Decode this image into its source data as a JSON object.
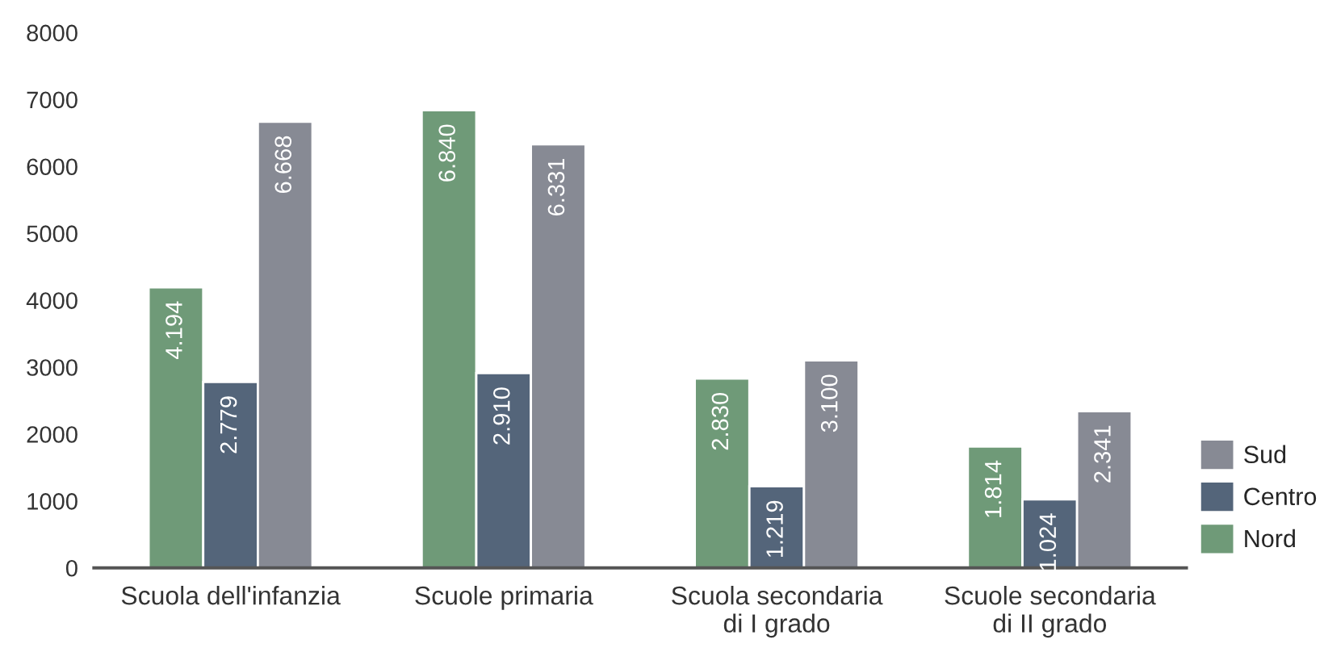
{
  "chart_data": {
    "type": "bar",
    "categories": [
      "Scuola dell'infanzia",
      "Scuole primaria",
      "Scuola secondaria\ndi I grado",
      "Scuole secondaria\ndi II grado"
    ],
    "series": [
      {
        "name": "Nord",
        "color": "#6f9a78",
        "values": [
          4194,
          6840,
          2830,
          1814
        ],
        "value_labels": [
          "4.194",
          "6.840",
          "2.830",
          "1.814"
        ]
      },
      {
        "name": "Centro",
        "color": "#54657a",
        "values": [
          2779,
          2910,
          1219,
          1024
        ],
        "value_labels": [
          "2.779",
          "2.910",
          "1.219",
          "1.024"
        ]
      },
      {
        "name": "Sud",
        "color": "#878a94",
        "values": [
          6668,
          6331,
          3100,
          2341
        ],
        "value_labels": [
          "6.668",
          "6.331",
          "3.100",
          "2.341"
        ]
      }
    ],
    "ylim": [
      0,
      8000
    ],
    "yticks": [
      0,
      1000,
      2000,
      3000,
      4000,
      5000,
      6000,
      7000,
      8000
    ],
    "grid": false,
    "legend": "right"
  }
}
